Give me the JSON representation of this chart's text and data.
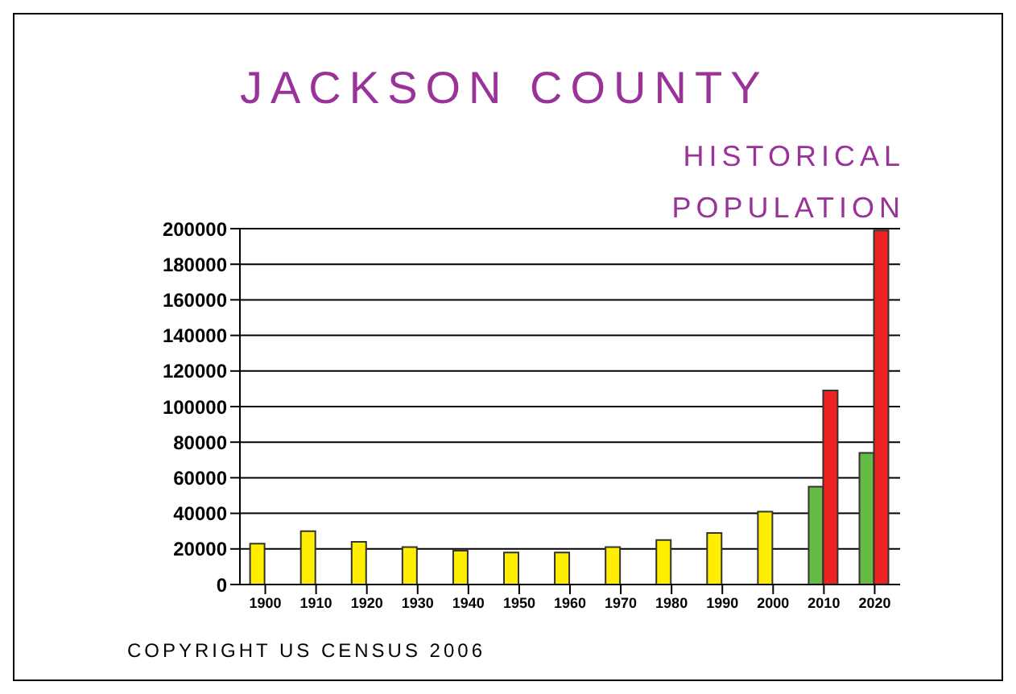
{
  "chart_data": {
    "type": "bar",
    "title": "JACKSON COUNTY",
    "subtitle": "HISTORICAL POPULATION",
    "categories": [
      "1900",
      "1910",
      "1920",
      "1930",
      "1940",
      "1950",
      "1960",
      "1970",
      "1980",
      "1990",
      "2000",
      "2010",
      "2020"
    ],
    "series": [
      {
        "color": "#ffee00",
        "colors": [
          "#ffee00",
          "#ffee00",
          "#ffee00",
          "#ffee00",
          "#ffee00",
          "#ffee00",
          "#ffee00",
          "#ffee00",
          "#ffee00",
          "#ffee00",
          "#ffee00",
          "#66bb44",
          "#66bb44"
        ],
        "values": [
          23000,
          30000,
          24000,
          21000,
          19000,
          18000,
          18000,
          21000,
          25000,
          29000,
          41000,
          55000,
          74000
        ]
      },
      {
        "color": "#ee2222",
        "values": [
          null,
          null,
          null,
          null,
          null,
          null,
          null,
          null,
          null,
          null,
          null,
          109000,
          199000
        ]
      }
    ],
    "ylim": [
      0,
      200000
    ],
    "yticks": [
      0,
      20000,
      40000,
      60000,
      80000,
      100000,
      120000,
      140000,
      160000,
      180000,
      200000
    ],
    "grid": "y",
    "legend": false,
    "annotations": [
      "COPYRIGHT US CENSUS 2006"
    ]
  }
}
